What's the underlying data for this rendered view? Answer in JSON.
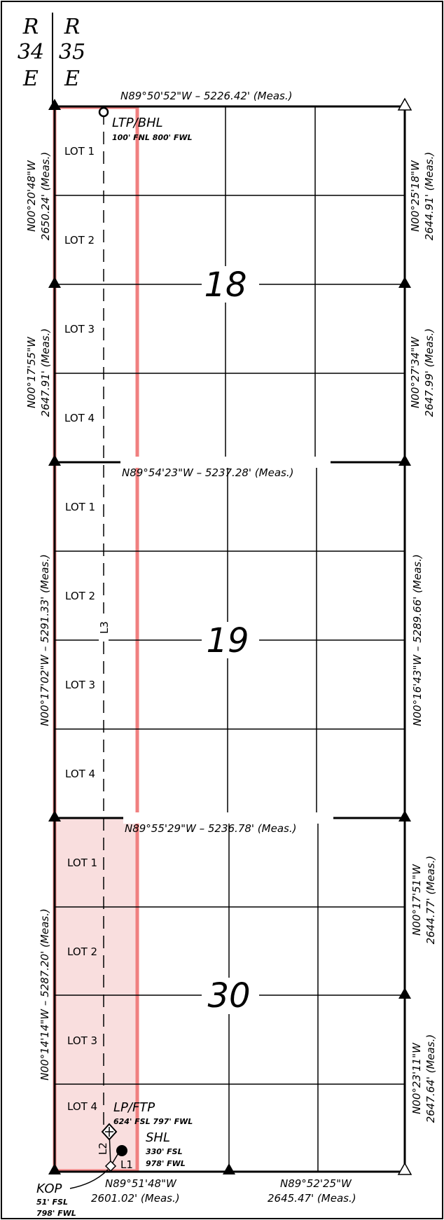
{
  "range": {
    "left": {
      "r": "R",
      "num": "34",
      "dir": "E"
    },
    "right": {
      "r": "R",
      "num": "35",
      "dir": "E"
    }
  },
  "sections": [
    "18",
    "19",
    "30"
  ],
  "lots": {
    "s18": [
      "LOT 1",
      "LOT 2",
      "LOT 3",
      "LOT 4"
    ],
    "s19": [
      "LOT 1",
      "LOT 2",
      "LOT 3",
      "LOT 4"
    ],
    "s30": [
      "LOT 1",
      "LOT 2",
      "LOT 3",
      "LOT 4"
    ]
  },
  "bearings": {
    "top_18": "N89°50'52\"W – 5226.42' (Meas.)",
    "top_19": "N89°54'23\"W – 5237.28' (Meas.)",
    "top_30": "N89°55'29\"W – 5236.78' (Meas.)",
    "bottom_left_1": "N89°51'48\"W",
    "bottom_left_2": "2601.02' (Meas.)",
    "bottom_right_1": "N89°52'25\"W",
    "bottom_right_2": "2645.47' (Meas.)",
    "w18a_1": "N00°20'48\"W",
    "w18a_2": "2650.24' (Meas.)",
    "w18b_1": "N00°17'55\"W",
    "w18b_2": "2647.91' (Meas.)",
    "w19": "N00°17'02\"W – 5291.33' (Meas.)",
    "w30": "N00°14'14\"W – 5287.20' (Meas.)",
    "e18a_1": "N00°25'18\"W",
    "e18a_2": "2644.91' (Meas.)",
    "e18b_1": "N00°27'34\"W",
    "e18b_2": "2647.99' (Meas.)",
    "e19": "N00°16'43\"W – 5289.66' (Meas.)",
    "e30a_1": "N00°17'51\"W",
    "e30a_2": "2644.77' (Meas.)",
    "e30b_1": "N00°23'11\"W",
    "e30b_2": "2647.64' (Meas.)"
  },
  "points": {
    "ltp_bhl": {
      "name": "LTP/BHL",
      "desc": "100' FNL 800' FWL"
    },
    "lp_ftp": {
      "name": "LP/FTP",
      "desc": "624' FSL 797' FWL"
    },
    "shl": {
      "name": "SHL",
      "desc1": "330' FSL",
      "desc2": "978' FWL"
    },
    "kop": {
      "name": "KOP",
      "desc1": "51' FSL",
      "desc2": "798' FWL"
    }
  },
  "lines": {
    "l1": "L1",
    "l2": "L2",
    "l3": "L3"
  },
  "colors": {
    "tract_outline": "#f08080",
    "tract_fill": "#f9dede",
    "lines": "#000000"
  }
}
